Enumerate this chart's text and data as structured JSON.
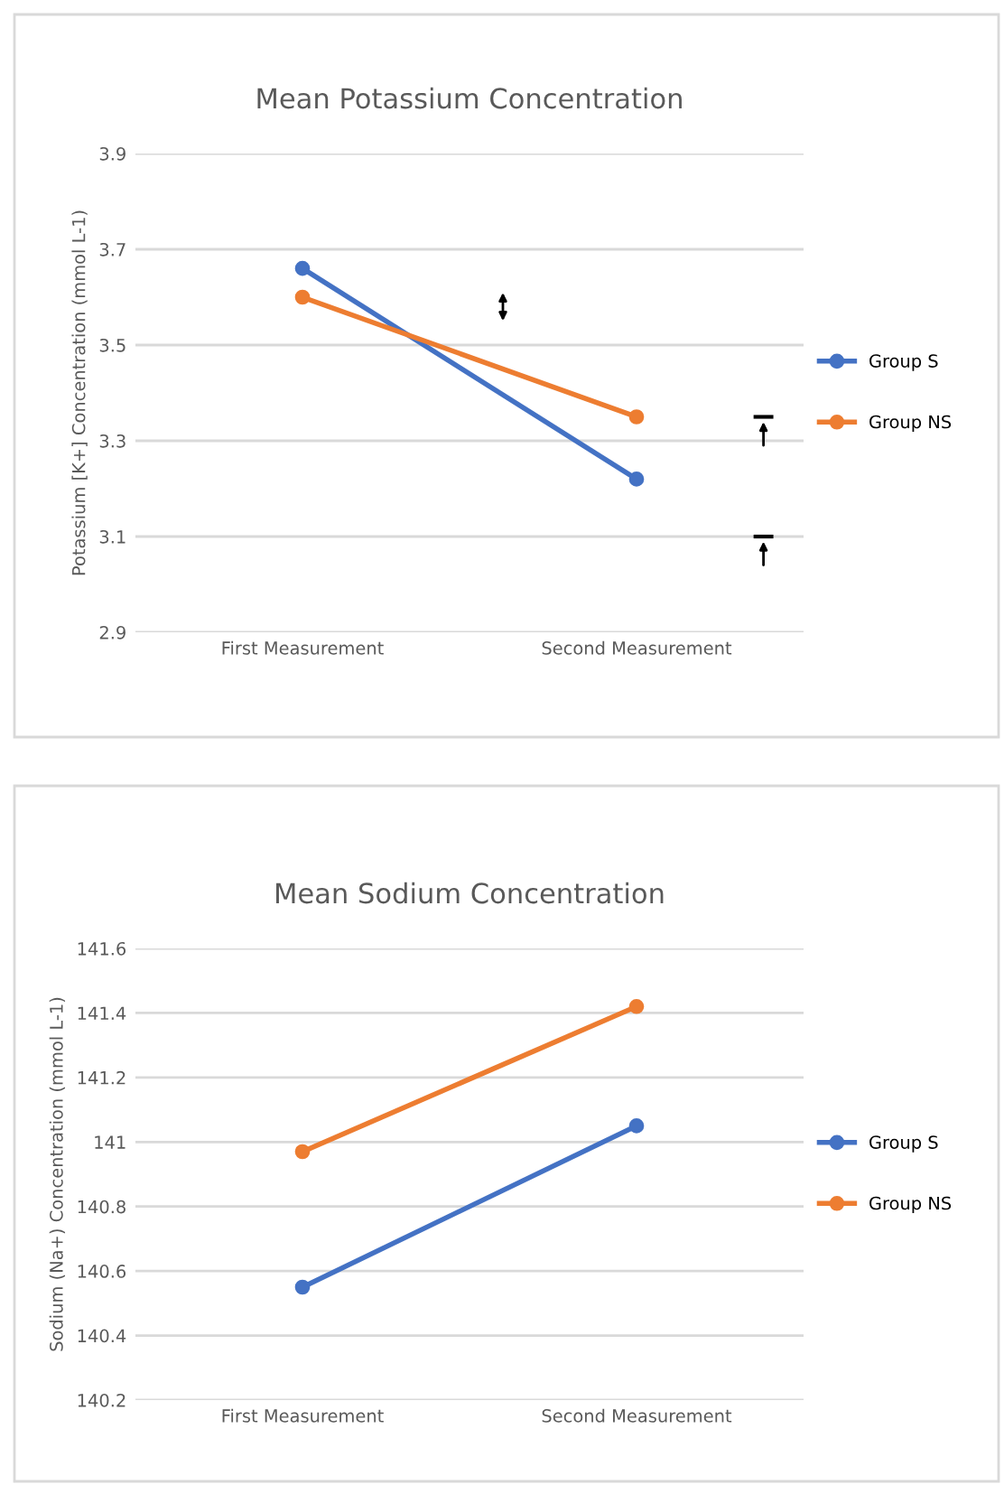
{
  "chart_data": [
    {
      "type": "line",
      "title": "Mean Potassium Concentration",
      "ylabel": "Potassium [K+] Concentration (mmol L-1)",
      "categories": [
        "First Measurement",
        "Second Measurement"
      ],
      "series": [
        {
          "name": "Group S",
          "color": "#4472c4",
          "values": [
            3.66,
            3.22
          ]
        },
        {
          "name": "Group NS",
          "color": "#ed7d31",
          "values": [
            3.6,
            3.35
          ]
        }
      ],
      "ylim": [
        2.9,
        3.9
      ],
      "yticks": [
        2.9,
        3.1,
        3.3,
        3.5,
        3.7,
        3.9
      ],
      "grid": "y",
      "legend": "right",
      "marker": "circle",
      "line_style": "solid"
    },
    {
      "type": "line",
      "title": "Mean Sodium Concentration",
      "ylabel": "Sodium (Na+) Concentration (mmol L-1)",
      "categories": [
        "First Measurement",
        "Second Measurement"
      ],
      "series": [
        {
          "name": "Group S",
          "color": "#4472c4",
          "values": [
            140.55,
            141.05
          ]
        },
        {
          "name": "Group NS",
          "color": "#ed7d31",
          "values": [
            140.97,
            141.42
          ]
        }
      ],
      "ylim": [
        140.2,
        141.6
      ],
      "yticks": [
        140.2,
        140.4,
        140.6,
        140.8,
        141,
        141.2,
        141.4,
        141.6
      ],
      "grid": "y",
      "legend": "right",
      "marker": "circle",
      "line_style": "solid"
    }
  ]
}
